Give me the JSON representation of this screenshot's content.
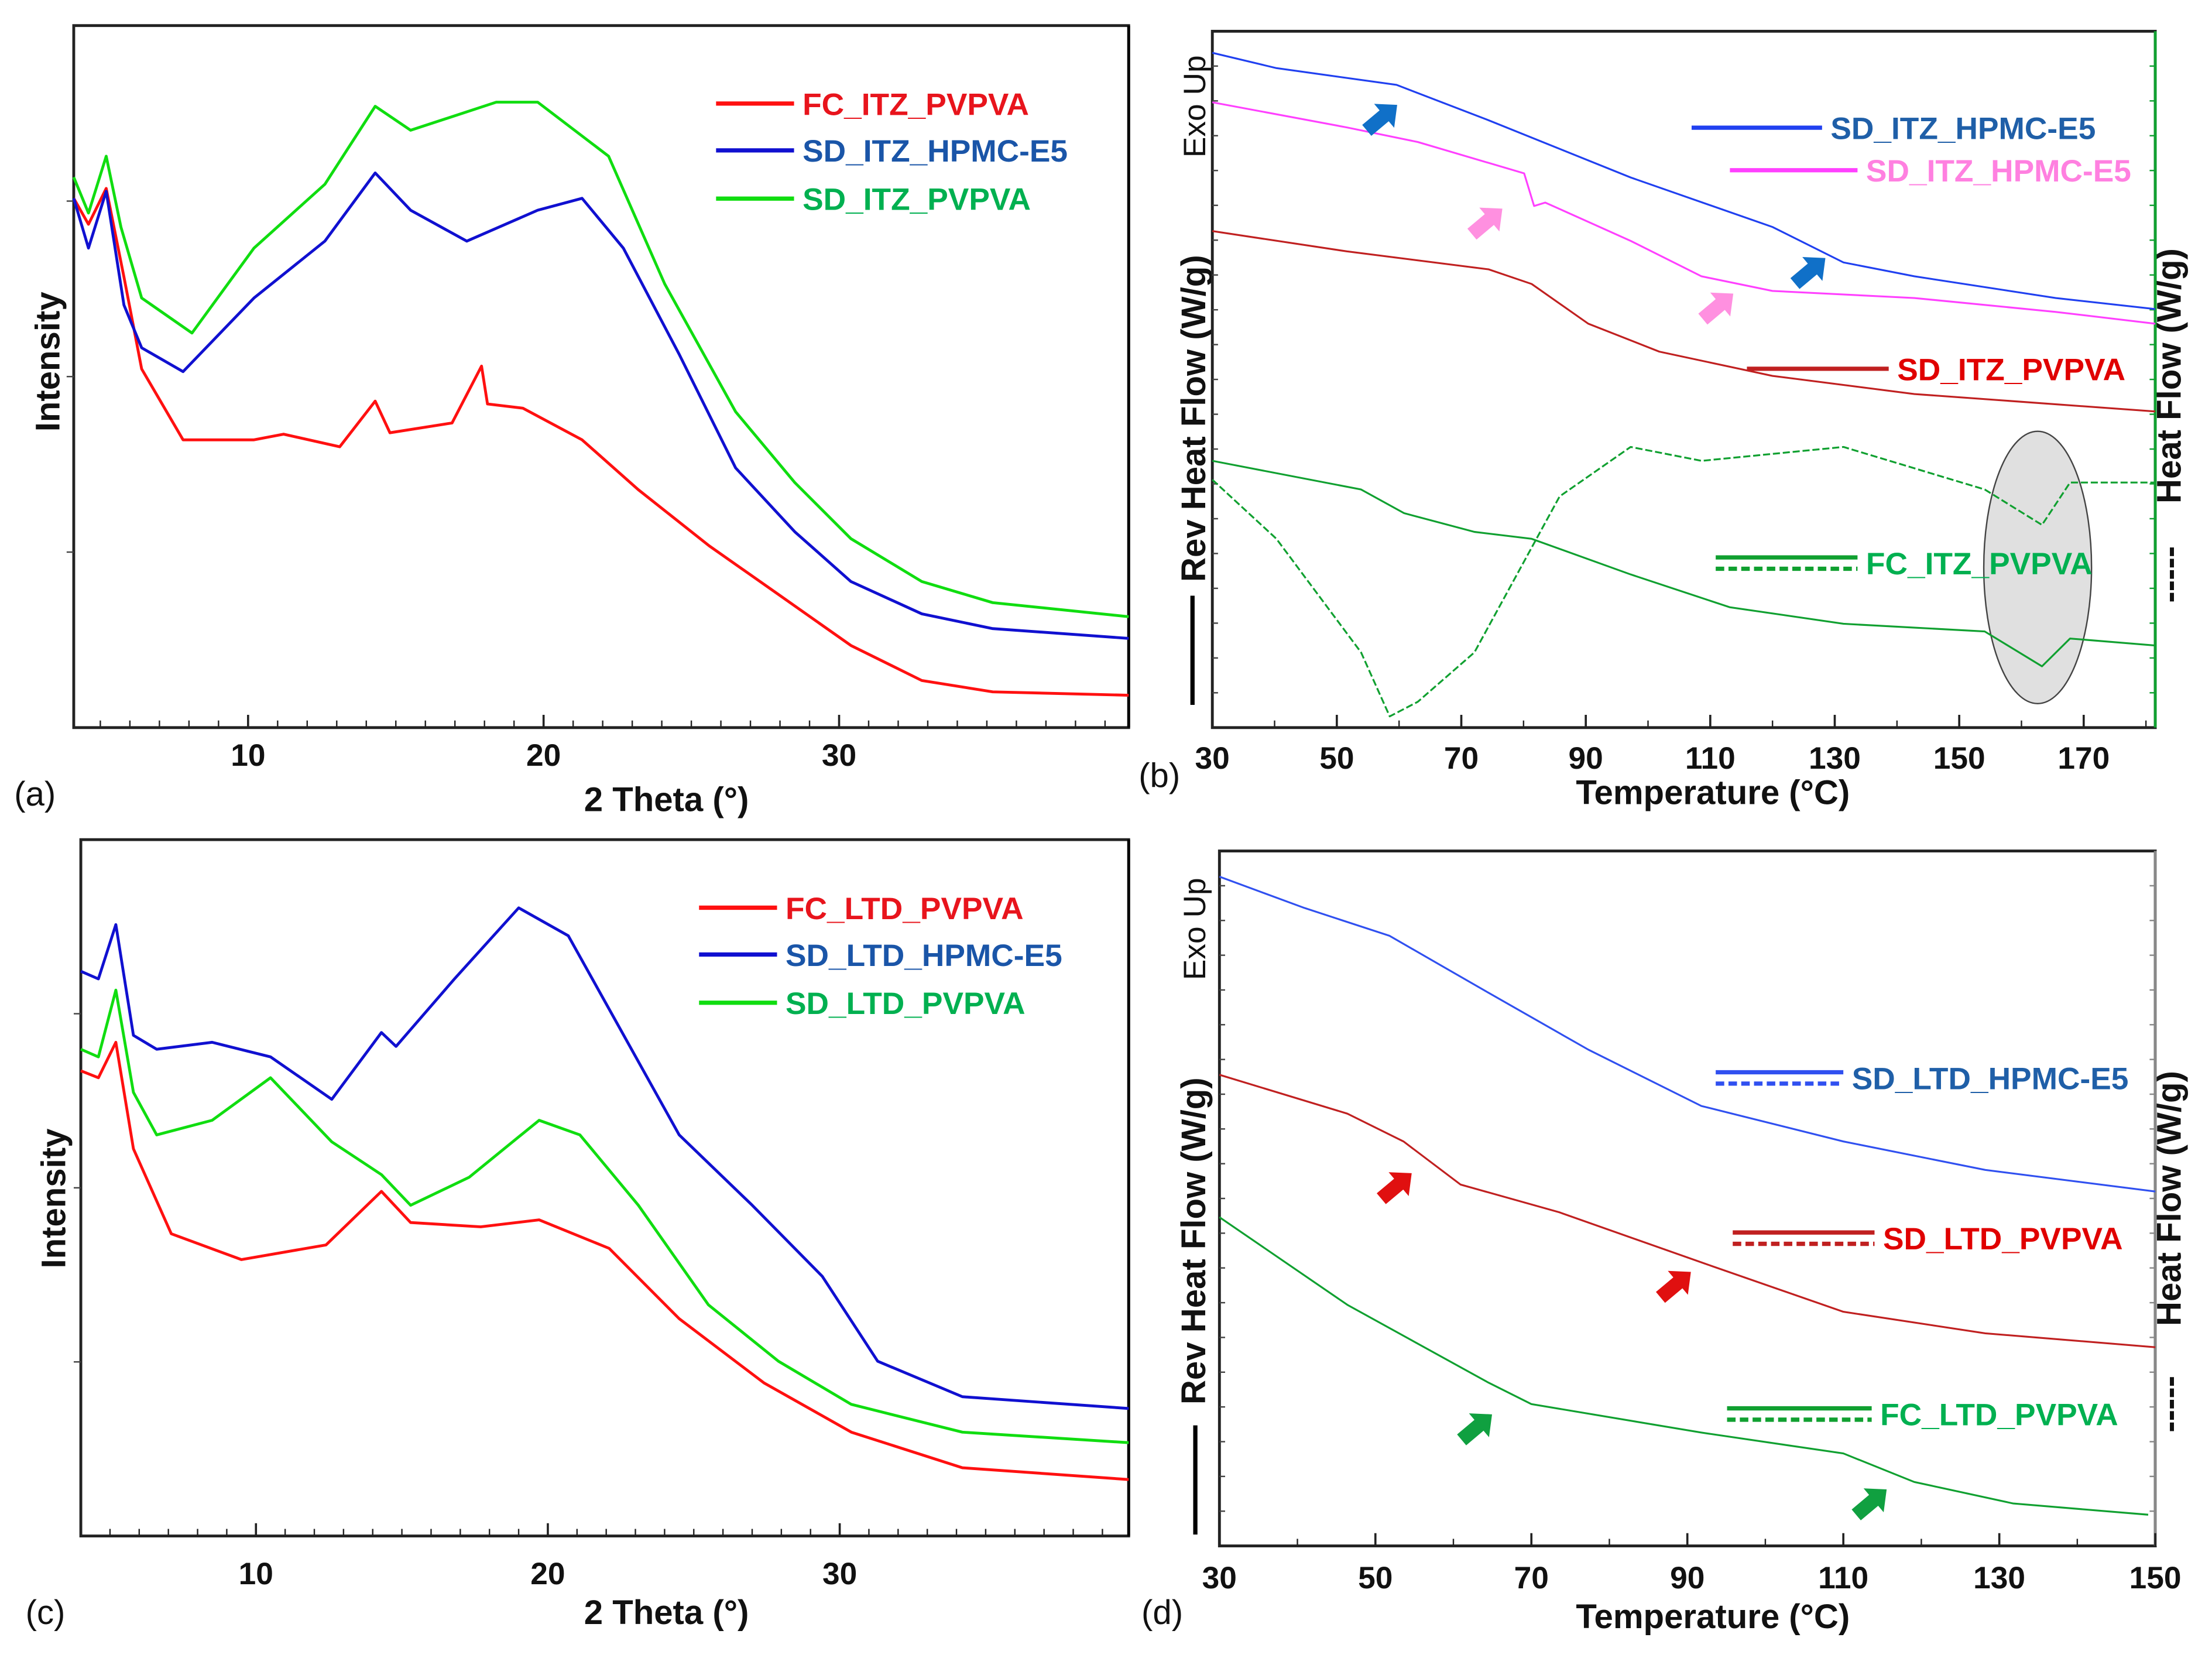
{
  "chart_data": [
    {
      "panel": "(a)",
      "type": "line",
      "xlabel": "2 Theta (°)",
      "ylabel": "Intensity",
      "xlim": [
        4.1,
        39.8
      ],
      "ylim": [
        0,
        100
      ],
      "xticks": [
        10,
        20,
        30
      ],
      "grid": false,
      "legend_placement": "top-right",
      "series": [
        {
          "name": "FC_ITZ_PVPVA",
          "color": "#ff1010",
          "text_color": "#e8141c",
          "style": "solid",
          "points": [
            [
              4.1,
              75.4
            ],
            [
              4.6,
              71.7
            ],
            [
              5.2,
              76.8
            ],
            [
              5.8,
              64.2
            ],
            [
              6.4,
              51.1
            ],
            [
              7.8,
              41.0
            ],
            [
              10.2,
              41.0
            ],
            [
              11.2,
              41.8
            ],
            [
              13.1,
              40.0
            ],
            [
              14.3,
              46.5
            ],
            [
              14.8,
              42.0
            ],
            [
              16.9,
              43.4
            ],
            [
              17.9,
              51.5
            ],
            [
              18.1,
              46.1
            ],
            [
              19.3,
              45.5
            ],
            [
              21.3,
              41.0
            ],
            [
              23.2,
              33.9
            ],
            [
              25.6,
              25.9
            ],
            [
              28.0,
              18.8
            ],
            [
              30.4,
              11.7
            ],
            [
              32.8,
              6.7
            ],
            [
              35.2,
              5.1
            ],
            [
              39.8,
              4.6
            ]
          ]
        },
        {
          "name": "SD_ITZ_HPMC-E5",
          "color": "#1010d0",
          "text_color": "#1a55a8",
          "style": "solid",
          "points": [
            [
              4.1,
              75.4
            ],
            [
              4.6,
              68.3
            ],
            [
              5.2,
              76.4
            ],
            [
              5.8,
              60.2
            ],
            [
              6.4,
              54.1
            ],
            [
              7.8,
              50.7
            ],
            [
              10.2,
              61.2
            ],
            [
              12.6,
              69.3
            ],
            [
              14.3,
              79.0
            ],
            [
              15.5,
              73.7
            ],
            [
              17.4,
              69.3
            ],
            [
              19.8,
              73.7
            ],
            [
              21.3,
              75.4
            ],
            [
              22.7,
              68.3
            ],
            [
              24.6,
              53.1
            ],
            [
              26.5,
              37.0
            ],
            [
              28.5,
              27.9
            ],
            [
              30.4,
              20.8
            ],
            [
              32.8,
              16.2
            ],
            [
              35.2,
              14.1
            ],
            [
              39.8,
              12.7
            ]
          ]
        },
        {
          "name": "SD_ITZ_PVPVA",
          "color": "#10dd10",
          "text_color": "#00b050",
          "style": "solid",
          "points": [
            [
              4.1,
              78.4
            ],
            [
              4.6,
              73.3
            ],
            [
              5.2,
              81.4
            ],
            [
              5.7,
              71.3
            ],
            [
              6.4,
              61.2
            ],
            [
              8.1,
              56.2
            ],
            [
              10.2,
              68.3
            ],
            [
              12.6,
              77.4
            ],
            [
              14.3,
              88.5
            ],
            [
              15.5,
              85.1
            ],
            [
              18.4,
              89.1
            ],
            [
              19.8,
              89.1
            ],
            [
              22.2,
              81.4
            ],
            [
              24.1,
              63.2
            ],
            [
              26.5,
              45.0
            ],
            [
              28.5,
              34.9
            ],
            [
              30.4,
              26.9
            ],
            [
              32.8,
              20.8
            ],
            [
              35.2,
              17.8
            ],
            [
              39.8,
              15.8
            ]
          ]
        }
      ]
    },
    {
      "panel": "(b)",
      "type": "line",
      "xlabel": "Temperature (°C)",
      "ylabel": "Rev Heat Flow (W/g)",
      "ylabel_right": "Heat Flow (W/g)",
      "ylabel_right_marker": "-----",
      "exo_label": "Exo Up",
      "xlim": [
        30,
        181.5
      ],
      "ylim": [
        0,
        100
      ],
      "xticks": [
        30,
        50,
        70,
        90,
        110,
        130,
        150,
        170
      ],
      "grid": false,
      "legend_placement": "right",
      "series": [
        {
          "name": "SD_ITZ_HPMC-E5",
          "color": "#2040f0",
          "text_color": "#1f5fa8",
          "style": "solid",
          "points": [
            [
              30,
              96.9
            ],
            [
              40.3,
              94.7
            ],
            [
              59.6,
              92.3
            ],
            [
              74.4,
              87.2
            ],
            [
              97.2,
              79.0
            ],
            [
              120,
              71.9
            ],
            [
              131.4,
              66.8
            ],
            [
              142.8,
              64.8
            ],
            [
              165.5,
              61.7
            ],
            [
              181.5,
              60.1
            ]
          ]
        },
        {
          "name": "SD_ITZ_HPMC-E5",
          "color": "#ff40ff",
          "text_color": "#ff80e0",
          "style": "solid",
          "points": [
            [
              30,
              89.8
            ],
            [
              51.6,
              86.2
            ],
            [
              63.0,
              84.1
            ],
            [
              80.1,
              79.6
            ],
            [
              81.7,
              74.9
            ],
            [
              83.5,
              75.4
            ],
            [
              97.2,
              69.9
            ],
            [
              108.6,
              64.8
            ],
            [
              120,
              62.7
            ],
            [
              142.8,
              61.7
            ],
            [
              165.5,
              59.7
            ],
            [
              181.5,
              58.0
            ]
          ]
        },
        {
          "name": "SD_ITZ_PVPVA",
          "color": "#c02020",
          "text_color": "#e00000",
          "style": "solid",
          "points": [
            [
              30,
              71.3
            ],
            [
              51.6,
              68.4
            ],
            [
              74.4,
              65.8
            ],
            [
              81.3,
              63.7
            ],
            [
              90.4,
              58.0
            ],
            [
              101.8,
              54.0
            ],
            [
              120,
              50.5
            ],
            [
              142.8,
              47.9
            ],
            [
              181.5,
              45.4
            ]
          ]
        },
        {
          "name": "FC_ITZ_PVPVA",
          "color": "#10a030",
          "text_color": "#00b050",
          "style": "solid",
          "legend_style": "solid+dashed",
          "points": [
            [
              30,
              38.3
            ],
            [
              53.9,
              34.2
            ],
            [
              60.8,
              30.8
            ],
            [
              72.1,
              28.1
            ],
            [
              81.3,
              27.1
            ],
            [
              97.2,
              22.0
            ],
            [
              113.1,
              17.3
            ],
            [
              131.4,
              14.9
            ],
            [
              154.1,
              13.8
            ],
            [
              163.3,
              8.8
            ],
            [
              167.8,
              12.8
            ],
            [
              181.5,
              11.8
            ]
          ]
        },
        {
          "name": "FC_ITZ_PVPVA (rev)",
          "color": "#10a030",
          "style": "dashed",
          "in_legend": false,
          "points": [
            [
              30,
              35.6
            ],
            [
              40.3,
              27.1
            ],
            [
              53.9,
              10.8
            ],
            [
              58.5,
              1.6
            ],
            [
              63.0,
              3.7
            ],
            [
              72.1,
              10.8
            ],
            [
              85.8,
              33.2
            ],
            [
              97.2,
              40.3
            ],
            [
              108.6,
              38.3
            ],
            [
              131.4,
              40.3
            ],
            [
              154.1,
              34.2
            ],
            [
              163.3,
              29.1
            ],
            [
              167.8,
              35.2
            ],
            [
              181.5,
              35.2
            ]
          ]
        }
      ],
      "annotations": [
        {
          "type": "arrow",
          "x": 58.0,
          "y": 87.8,
          "color": "#1070c8"
        },
        {
          "type": "arrow",
          "x": 74.9,
          "y": 72.9,
          "color": "#ff90e0"
        },
        {
          "type": "arrow",
          "x": 112.0,
          "y": 60.7,
          "color": "#ff90e0"
        },
        {
          "type": "arrow",
          "x": 126.8,
          "y": 65.8,
          "color": "#1070c8"
        },
        {
          "type": "ellipse",
          "x": 162.6,
          "y": 23,
          "color": "#e0e0e0"
        }
      ]
    },
    {
      "panel": "(c)",
      "type": "line",
      "xlabel": "2 Theta (°)",
      "ylabel": "Intensity",
      "xlim": [
        4.0,
        39.9
      ],
      "ylim": [
        0,
        100
      ],
      "xticks": [
        10,
        20,
        30
      ],
      "grid": false,
      "legend_placement": "top-right",
      "series": [
        {
          "name": "FC_LTD_PVPVA",
          "color": "#ff1010",
          "text_color": "#e8141c",
          "style": "solid",
          "points": [
            [
              4.0,
              66.8
            ],
            [
              4.6,
              65.8
            ],
            [
              5.2,
              70.9
            ],
            [
              5.8,
              55.6
            ],
            [
              7.1,
              43.4
            ],
            [
              9.5,
              39.7
            ],
            [
              12.4,
              41.8
            ],
            [
              14.3,
              49.5
            ],
            [
              15.3,
              45.0
            ],
            [
              17.7,
              44.4
            ],
            [
              19.7,
              45.4
            ],
            [
              22.1,
              41.3
            ],
            [
              24.5,
              31.2
            ],
            [
              27.4,
              22.0
            ],
            [
              30.4,
              14.9
            ],
            [
              34.2,
              9.8
            ],
            [
              39.9,
              8.1
            ]
          ]
        },
        {
          "name": "SD_LTD_HPMC-E5",
          "color": "#1010d0",
          "text_color": "#1a55a8",
          "style": "solid",
          "points": [
            [
              4.0,
              81.1
            ],
            [
              4.6,
              80.0
            ],
            [
              5.2,
              87.8
            ],
            [
              5.8,
              71.9
            ],
            [
              6.6,
              69.9
            ],
            [
              8.5,
              70.9
            ],
            [
              10.5,
              68.8
            ],
            [
              12.6,
              62.7
            ],
            [
              14.3,
              72.3
            ],
            [
              14.8,
              70.3
            ],
            [
              16.8,
              80.0
            ],
            [
              19.0,
              90.2
            ],
            [
              20.7,
              86.2
            ],
            [
              22.6,
              71.9
            ],
            [
              24.5,
              57.6
            ],
            [
              27.0,
              47.5
            ],
            [
              29.4,
              37.3
            ],
            [
              31.3,
              25.1
            ],
            [
              34.2,
              20.0
            ],
            [
              39.9,
              18.3
            ]
          ]
        },
        {
          "name": "SD_LTD_PVPVA",
          "color": "#10dd10",
          "text_color": "#00b050",
          "style": "solid",
          "points": [
            [
              4.0,
              69.9
            ],
            [
              4.6,
              68.8
            ],
            [
              5.2,
              78.4
            ],
            [
              5.8,
              63.7
            ],
            [
              6.6,
              57.6
            ],
            [
              8.5,
              59.7
            ],
            [
              10.5,
              65.8
            ],
            [
              12.6,
              56.6
            ],
            [
              14.3,
              51.9
            ],
            [
              15.3,
              47.5
            ],
            [
              17.3,
              51.5
            ],
            [
              19.7,
              59.7
            ],
            [
              21.1,
              57.6
            ],
            [
              23.1,
              47.5
            ],
            [
              25.5,
              33.2
            ],
            [
              27.9,
              25.1
            ],
            [
              30.4,
              18.9
            ],
            [
              34.2,
              14.9
            ],
            [
              39.9,
              13.4
            ]
          ]
        }
      ]
    },
    {
      "panel": "(d)",
      "type": "line",
      "xlabel": "Temperature (°C)",
      "ylabel": "Rev Heat Flow (W/g)",
      "ylabel_right": "Heat Flow (W/g)",
      "ylabel_right_marker": "-----",
      "exo_label": "Exo Up",
      "xlim": [
        30,
        150
      ],
      "ylim": [
        0,
        100
      ],
      "xticks": [
        30,
        50,
        70,
        90,
        110,
        130,
        150
      ],
      "grid": false,
      "legend_placement": "right",
      "series": [
        {
          "name": "SD_LTD_HPMC-E5",
          "color": "#3050f0",
          "text_color": "#1f5fa8",
          "style": "solid",
          "legend_style": "solid+dashed",
          "points": [
            [
              30,
              96.3
            ],
            [
              40.9,
              91.8
            ],
            [
              51.8,
              87.8
            ],
            [
              64.5,
              79.6
            ],
            [
              77.3,
              71.4
            ],
            [
              91.8,
              63.3
            ],
            [
              110,
              58.2
            ],
            [
              128.2,
              54.1
            ],
            [
              150,
              51.0
            ]
          ]
        },
        {
          "name": "SD_LTD_PVPVA",
          "color": "#c02020",
          "text_color": "#e00000",
          "style": "solid",
          "legend_style": "solid+dashed",
          "points": [
            [
              30,
              67.8
            ],
            [
              46.4,
              62.2
            ],
            [
              53.6,
              58.2
            ],
            [
              60.9,
              52.0
            ],
            [
              73.6,
              48.0
            ],
            [
              91.8,
              40.8
            ],
            [
              110,
              33.7
            ],
            [
              128.2,
              30.6
            ],
            [
              150,
              28.6
            ]
          ]
        },
        {
          "name": "FC_LTD_PVPVA",
          "color": "#10a030",
          "text_color": "#00b050",
          "style": "solid",
          "legend_style": "solid+dashed",
          "points": [
            [
              30,
              47.3
            ],
            [
              46.4,
              34.7
            ],
            [
              64.5,
              23.5
            ],
            [
              70,
              20.4
            ],
            [
              91.8,
              16.3
            ],
            [
              110,
              13.3
            ],
            [
              119.1,
              9.2
            ],
            [
              131.8,
              6.1
            ],
            [
              149.1,
              4.5
            ]
          ]
        }
      ],
      "annotations": [
        {
          "type": "arrow",
          "x": 53.3,
          "y": 52.0,
          "color": "#e01010"
        },
        {
          "type": "arrow",
          "x": 89.1,
          "y": 37.8,
          "color": "#e01010"
        },
        {
          "type": "arrow",
          "x": 63.6,
          "y": 17.3,
          "color": "#10a040"
        },
        {
          "type": "arrow",
          "x": 114.2,
          "y": 6.5,
          "color": "#10a040"
        }
      ]
    }
  ]
}
